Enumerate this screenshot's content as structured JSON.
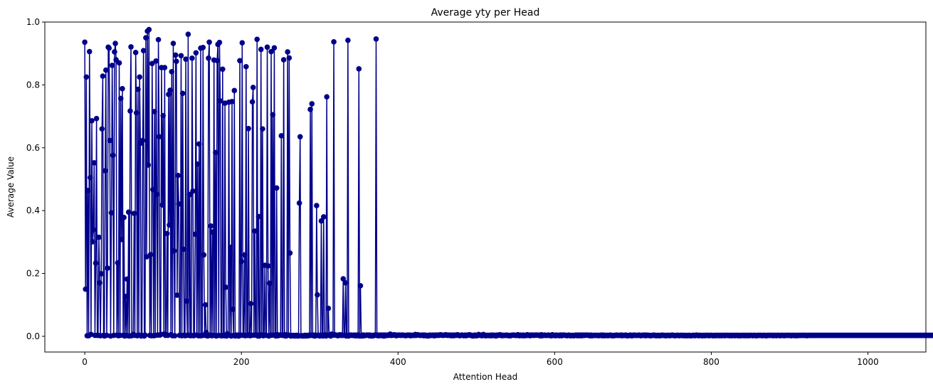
{
  "chart_data": {
    "type": "line",
    "title": "Average yty per Head",
    "xlabel": "Attention Head",
    "ylabel": "Average Value",
    "xlim": [
      -51,
      1074
    ],
    "ylim": [
      -0.05,
      1.0
    ],
    "xticks": [
      0,
      200,
      400,
      600,
      800,
      1000
    ],
    "xtick_labels": [
      "0",
      "200",
      "400",
      "600",
      "800",
      "1000"
    ],
    "yticks": [
      0.0,
      0.2,
      0.4,
      0.6,
      0.8,
      1.0
    ],
    "ytick_labels": [
      "0.0",
      "0.2",
      "0.4",
      "0.6",
      "0.8",
      "1.0"
    ],
    "grid": false,
    "legend": "none",
    "series": [
      {
        "color": "#00008B",
        "marker": "circle",
        "x_start": 0,
        "x_step": 1,
        "values": [
          0.936,
          0.15,
          0.825,
          0.002,
          0.464,
          0.002,
          0.906,
          0.505,
          0.006,
          0.686,
          0.301,
          0.339,
          0.552,
          0.003,
          0.233,
          0.693,
          0.003,
          0.003,
          0.315,
          0.17,
          0.002,
          0.199,
          0.66,
          0.828,
          0.003,
          0.001,
          0.527,
          0.847,
          0.003,
          0.217,
          0.92,
          0.917,
          0.623,
          0.001,
          0.393,
          0.862,
          0.576,
          0.003,
          0.905,
          0.932,
          0.88,
          0.004,
          0.234,
          0.002,
          0.87,
          0.003,
          0.757,
          0.308,
          0.788,
          0.003,
          0.378,
          0.001,
          0.127,
          0.003,
          0.182,
          0.002,
          0.395,
          0.001,
          0.717,
          0.921,
          0.002,
          0.004,
          0.006,
          0.391,
          0.003,
          0.903,
          0.711,
          0.002,
          0.786,
          0.004,
          0.825,
          0.614,
          0.001,
          0.003,
          0.623,
          0.909,
          0.001,
          0.004,
          0.95,
          0.253,
          0.971,
          0.545,
          0.976,
          0.003,
          0.26,
          0.002,
          0.868,
          0.467,
          0.002,
          0.715,
          0.003,
          0.876,
          0.452,
          0.004,
          0.944,
          0.635,
          0.004,
          0.006,
          0.855,
          0.418,
          0.702,
          0.007,
          0.855,
          0.003,
          0.005,
          0.327,
          0.003,
          0.77,
          0.354,
          0.783,
          0.005,
          0.842,
          0.002,
          0.932,
          0.272,
          0.002,
          0.895,
          0.875,
          0.131,
          0.512,
          0.421,
          0.003,
          0.003,
          0.893,
          0.002,
          0.773,
          0.277,
          0.004,
          0.002,
          0.882,
          0.112,
          0.003,
          0.961,
          0.004,
          0.451,
          0.002,
          0.003,
          0.885,
          0.462,
          0.002,
          0.004,
          0.325,
          0.902,
          0.004,
          0.548,
          0.002,
          0.612,
          0.002,
          0.917,
          0.002,
          0.004,
          0.919,
          0.259,
          0.003,
          0.1,
          0.012,
          0.002,
          0.001,
          0.885,
          0.936,
          0.004,
          0.351,
          0.002,
          0.332,
          0.003,
          0.879,
          0.003,
          0.585,
          0.001,
          0.877,
          0.929,
          0.003,
          0.935,
          0.749,
          0.002,
          0.002,
          0.85,
          0.003,
          0.002,
          0.742,
          0.156,
          0.001,
          0.008,
          0.004,
          0.745,
          0.003,
          0.283,
          0.001,
          0.747,
          0.086,
          0.003,
          0.782,
          0.001,
          0.004,
          0.003,
          0.004,
          0.001,
          0.001,
          0.877,
          0.004,
          0.238,
          0.934,
          0.003,
          0.004,
          0.259,
          0.002,
          0.858,
          0.003,
          0.003,
          0.661,
          0.005,
          0.002,
          0.104,
          0.003,
          0.746,
          0.792,
          0.004,
          0.335,
          0.004,
          0.004,
          0.945,
          0.001,
          0.381,
          0.001,
          0.005,
          0.913,
          0.004,
          0.66,
          0.002,
          0.003,
          0.226,
          0.004,
          0.003,
          0.92,
          0.224,
          0.001,
          0.169,
          0.003,
          0.906,
          0.004,
          0.705,
          0.004,
          0.918,
          0.003,
          0.001,
          0.472,
          0.005,
          0.002,
          0.003,
          0.004,
          0.004,
          0.638,
          0.003,
          0.004,
          0.88,
          0.002,
          0.005,
          0.001,
          0.003,
          0.905,
          0.004,
          0.886,
          0.265,
          0.001,
          0.003,
          0.002,
          0.002,
          0.003,
          0.001,
          0.002,
          0.003,
          0.001,
          0.003,
          0.001,
          0.424,
          0.635,
          0.002,
          0.002,
          0.001,
          0.002,
          0.001,
          0.003,
          0.003,
          0.001,
          0.002,
          0.003,
          0.002,
          0.004,
          0.722,
          0.003,
          0.74,
          0.004,
          0.002,
          0.004,
          0.001,
          0.002,
          0.416,
          0.132,
          0.004,
          0.002,
          0.001,
          0.003,
          0.367,
          0.004,
          0.001,
          0.38,
          0.003,
          0.005,
          0.001,
          0.762,
          0.003,
          0.089,
          0.004,
          0.003,
          0.001,
          0.007,
          0.004,
          0.004,
          0.937,
          0.005,
          0.004,
          0.004,
          0.003,
          0.002,
          0.004,
          0.003,
          0.005,
          0.003,
          0.004,
          0.003,
          0.183,
          0.003,
          0.004,
          0.17,
          0.001,
          0.003,
          0.942,
          0.001,
          0.004,
          0.004,
          0.004,
          0.003,
          0.003,
          0.003,
          0.004,
          0.002,
          0.002,
          0.004,
          0.002,
          0.004,
          0.851,
          0.001,
          0.161,
          0.002,
          0.001,
          0.004,
          0.004,
          0.002,
          0.003,
          0.003,
          0.004,
          0.004,
          0.004,
          0.002,
          0.004,
          0.002,
          0.001,
          0.003,
          0.002,
          0.002,
          0.004,
          0.004,
          0.946,
          0.004,
          0.002,
          0.004,
          0.002,
          0.004,
          0.003,
          0.004,
          0.002,
          0.004,
          0.001,
          0.004,
          0.002,
          0.003,
          0.004,
          0.003,
          0.003,
          0.005,
          0.007,
          0.003,
          0.003,
          0.004,
          0.004,
          0.005,
          0.003,
          0.004,
          0.002,
          0.003,
          0.004,
          0.004,
          0.004,
          0.003,
          0.003,
          0.004,
          0.004,
          0.003,
          0.003,
          0.003,
          0.002,
          0.003,
          0.004,
          0.004,
          0.003,
          0.004,
          0.002,
          0.003,
          0.003,
          0.003,
          0.003,
          0.003,
          0.006,
          0.003,
          0.004,
          0.005,
          0.004,
          0.004,
          0.003,
          0.003,
          0.003,
          0.004,
          0.004,
          0.002,
          0.004,
          0.003,
          0.002,
          0.003,
          0.001,
          0.003,
          0.002,
          0.004,
          0.003,
          0.003,
          0.003,
          0.004,
          0.002,
          0.002,
          0.004,
          0.004,
          0.003,
          0.004,
          0.003,
          0.004,
          0.005,
          0.004,
          0.004,
          0.003,
          0.003,
          0.004,
          0.004,
          0.005,
          0.004,
          0.003,
          0.004,
          0.003,
          0.004,
          0.004,
          0.002,
          0.003,
          0.004,
          0.002,
          0.003,
          0.004,
          0.003,
          0.004,
          0.005,
          0.003,
          0.003,
          0.002,
          0.003,
          0.004,
          0.004,
          0.003,
          0.002,
          0.003,
          0.004,
          0.002,
          0.003,
          0.004,
          0.004,
          0.005,
          0.004,
          0.004,
          0.002,
          0.002,
          0.001,
          0.003,
          0.004,
          0.002,
          0.003,
          0.002,
          0.004,
          0.006,
          0.004,
          0.003,
          0.004,
          0.002,
          0.004,
          0.006,
          0.004,
          0.002,
          0.003,
          0.002,
          0.003,
          0.003,
          0.003,
          0.002,
          0.003,
          0.004,
          0.002,
          0.003,
          0.004,
          0.003,
          0.002,
          0.001,
          0.004,
          0.003,
          0.003,
          0.004,
          0.005,
          0.003,
          0.004,
          0.002,
          0.003,
          0.003,
          0.003,
          0.003,
          0.003,
          0.004,
          0.003,
          0.002,
          0.002,
          0.003,
          0.002,
          0.003,
          0.004,
          0.004,
          0.004,
          0.003,
          0.003,
          0.003,
          0.003,
          0.005,
          0.003,
          0.002,
          0.004,
          0.003,
          0.003,
          0.002,
          0.004,
          0.003,
          0.002,
          0.003,
          0.003,
          0.005,
          0.003,
          0.003,
          0.004,
          0.002,
          0.004,
          0.004,
          0.004,
          0.003,
          0.003,
          0.004,
          0.004,
          0.004,
          0.004,
          0.004,
          0.003,
          0.002,
          0.002,
          0.005,
          0.002,
          0.003,
          0.003,
          0.004,
          0.003,
          0.003,
          0.003,
          0.003,
          0.004,
          0.003,
          0.003,
          0.002,
          0.002,
          0.005,
          0.003,
          0.003,
          0.003,
          0.002,
          0.004,
          0.003,
          0.003,
          0.003,
          0.002,
          0.004,
          0.004,
          0.002,
          0.004,
          0.004,
          0.004,
          0.003,
          0.003,
          0.003,
          0.002,
          0.003,
          0.004,
          0.003,
          0.002,
          0.002,
          0.003,
          0.003,
          0.002,
          0.002,
          0.003,
          0.004,
          0.004,
          0.002,
          0.003,
          0.004,
          0.002,
          0.003,
          0.004,
          0.002,
          0.003,
          0.004,
          0.003,
          0.003,
          0.004,
          0.004,
          0.004,
          0.003,
          0.003,
          0.002,
          0.004,
          0.002,
          0.002,
          0.003,
          0.003,
          0.003,
          0.003,
          0.003,
          0.003,
          0.003,
          0.002,
          0.003,
          0.003,
          0.003,
          0.004,
          0.002,
          0.004,
          0.003,
          0.002,
          0.003,
          0.003,
          0.003,
          0.002,
          0.003,
          0.003,
          0.004,
          0.003,
          0.002,
          0.002,
          0.003,
          0.002,
          0.003,
          0.003,
          0.004,
          0.003,
          0.003,
          0.003,
          0.003,
          0.003,
          0.004,
          0.002,
          0.003,
          0.003,
          0.003,
          0.003,
          0.004,
          0.002,
          0.002,
          0.002,
          0.003,
          0.003,
          0.004,
          0.002,
          0.002,
          0.003,
          0.004,
          0.003,
          0.003,
          0.003,
          0.003,
          0.003,
          0.003,
          0.004,
          0.003,
          0.002,
          0.003,
          0.003,
          0.003,
          0.004,
          0.003,
          0.002,
          0.004,
          0.003,
          0.003,
          0.003,
          0.003,
          0.002,
          0.002,
          0.003,
          0.003,
          0.003,
          0.004,
          0.003,
          0.002,
          0.003,
          0.002,
          0.003,
          0.003,
          0.002,
          0.002,
          0.003,
          0.004,
          0.003,
          0.003,
          0.003,
          0.002,
          0.003,
          0.002,
          0.003,
          0.003,
          0.003,
          0.002,
          0.003,
          0.003,
          0.004,
          0.003,
          0.003,
          0.002,
          0.002,
          0.003,
          0.003,
          0.003,
          0.003,
          0.002,
          0.003,
          0.003,
          0.003,
          0.003,
          0.002,
          0.003,
          0.003,
          0.002,
          0.002,
          0.003,
          0.002,
          0.003,
          0.003,
          0.002,
          0.002,
          0.002,
          0.003,
          0.003,
          0.003,
          0.002,
          0.003,
          0.004,
          0.003,
          0.003,
          0.002,
          0.003,
          0.003,
          0.003,
          0.002,
          0.002,
          0.003,
          0.003,
          0.002,
          0.003,
          0.003,
          0.003,
          0.003,
          0.002,
          0.003,
          0.003,
          0.003,
          0.003,
          0.002,
          0.002,
          0.003,
          0.003,
          0.002,
          0.003,
          0.003,
          0.003,
          0.002,
          0.003,
          0.003,
          0.002,
          0.003,
          0.003,
          0.003,
          0.002,
          0.003,
          0.003,
          0.003,
          0.003,
          0.003,
          0.002,
          0.003,
          0.003,
          0.002,
          0.003,
          0.003,
          0.003,
          0.002,
          0.003,
          0.003,
          0.003,
          0.002,
          0.003,
          0.002,
          0.003,
          0.002,
          0.003,
          0.003,
          0.003,
          0.002,
          0.003,
          0.003,
          0.002,
          0.003,
          0.003,
          0.002,
          0.003,
          0.003,
          0.003,
          0.003,
          0.002,
          0.003,
          0.003,
          0.003,
          0.002,
          0.002,
          0.003,
          0.003,
          0.003,
          0.003,
          0.003,
          0.003,
          0.002,
          0.003,
          0.003,
          0.003,
          0.002,
          0.003,
          0.002,
          0.003,
          0.003,
          0.003,
          0.003,
          0.003,
          0.003,
          0.003,
          0.002,
          0.003,
          0.003,
          0.003,
          0.002,
          0.003,
          0.003,
          0.003,
          0.003,
          0.002,
          0.003,
          0.003,
          0.003,
          0.003,
          0.002,
          0.003,
          0.003,
          0.003,
          0.003,
          0.003,
          0.003,
          0.003,
          0.003,
          0.002,
          0.003,
          0.003,
          0.003,
          0.003,
          0.002,
          0.003,
          0.003,
          0.002,
          0.003,
          0.003,
          0.003,
          0.003,
          0.003,
          0.003,
          0.003,
          0.003,
          0.003,
          0.003,
          0.003,
          0.002,
          0.003,
          0.003,
          0.003,
          0.003,
          0.003,
          0.003,
          0.003,
          0.003,
          0.003,
          0.003,
          0.003,
          0.003,
          0.003,
          0.003,
          0.003,
          0.003,
          0.003,
          0.003,
          0.003,
          0.003,
          0.003,
          0.003,
          0.003,
          0.003,
          0.003,
          0.003,
          0.003,
          0.003,
          0.003,
          0.003,
          0.003,
          0.003,
          0.003,
          0.003,
          0.003,
          0.003,
          0.003,
          0.003,
          0.003,
          0.003,
          0.003,
          0.003,
          0.003,
          0.003,
          0.003,
          0.003,
          0.003,
          0.003,
          0.003,
          0.003,
          0.003,
          0.003,
          0.003,
          0.003,
          0.003,
          0.003,
          0.003,
          0.003,
          0.003,
          0.003,
          0.003,
          0.003,
          0.003,
          0.003,
          0.003,
          0.003,
          0.003,
          0.003,
          0.003,
          0.003,
          0.003,
          0.003,
          0.003,
          0.003,
          0.003,
          0.003,
          0.003,
          0.003,
          0.003,
          0.003,
          0.003,
          0.003,
          0.003,
          0.003,
          0.003,
          0.003,
          0.003,
          0.003,
          0.003,
          0.003,
          0.003,
          0.003,
          0.003,
          0.003,
          0.003,
          0.003,
          0.003,
          0.003,
          0.003,
          0.003,
          0.003,
          0.003,
          0.003,
          0.003,
          0.003,
          0.003,
          0.003,
          0.003,
          0.003,
          0.003,
          0.003,
          0.003,
          0.003,
          0.003,
          0.003,
          0.003,
          0.003,
          0.003,
          0.003,
          0.003,
          0.003,
          0.003,
          0.003,
          0.003,
          0.003,
          0.003,
          0.003,
          0.003,
          0.003,
          0.003,
          0.003,
          0.003,
          0.003,
          0.003,
          0.003,
          0.003,
          0.003,
          0.003,
          0.003,
          0.003,
          0.003,
          0.003,
          0.003,
          0.003,
          0.003,
          0.003,
          0.003,
          0.003,
          0.003,
          0.003,
          0.003,
          0.003,
          0.003,
          0.003,
          0.003,
          0.003,
          0.003,
          0.003,
          0.003,
          0.003,
          0.003,
          0.003,
          0.003,
          0.003,
          0.003,
          0.003,
          0.003,
          0.003,
          0.003,
          0.003,
          0.003,
          0.003,
          0.003,
          0.003,
          0.003,
          0.003,
          0.003,
          0.003,
          0.003,
          0.003,
          0.003,
          0.003,
          0.003,
          0.003,
          0.003,
          0.003,
          0.003,
          0.003,
          0.003,
          0.003
        ]
      }
    ]
  }
}
